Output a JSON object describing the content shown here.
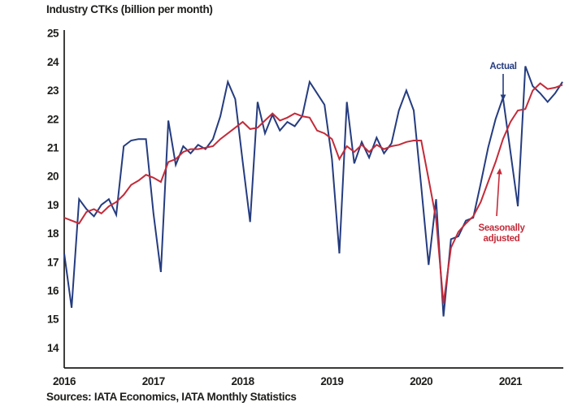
{
  "header": {
    "title": "Industry CTKs (billion per month)"
  },
  "footer": {
    "source": "Sources: IATA Economics, IATA Monthly Statistics"
  },
  "annotations": {
    "actual_label": "Actual",
    "sa_label_line1": "Seasonally",
    "sa_label_line2": "adjusted"
  },
  "colors": {
    "actual_line": "#253c7f",
    "seasonally_adjusted_line": "#c32b39",
    "axis": "#1d1d1b",
    "background": "#ffffff"
  },
  "chart_data": {
    "type": "line",
    "title": "Industry CTKs (billion per month)",
    "x_unit": "month",
    "x_range": [
      "2016-01",
      "2021-08"
    ],
    "x_tick_labels": [
      "2016",
      "2017",
      "2018",
      "2019",
      "2020",
      "2021"
    ],
    "months_per_x_tick": 12,
    "y_ticks": [
      14,
      15,
      16,
      17,
      18,
      19,
      20,
      21,
      22,
      23,
      24,
      25
    ],
    "ylim": [
      14,
      25
    ],
    "grid": false,
    "legend": "inline-annotations",
    "series": [
      {
        "name": "Actual",
        "color": "#253c7f",
        "values": [
          17.3,
          15.4,
          19.2,
          18.85,
          18.6,
          19.0,
          19.2,
          18.65,
          21.05,
          21.25,
          21.3,
          21.3,
          18.7,
          16.65,
          21.95,
          20.4,
          21.05,
          20.8,
          21.1,
          20.95,
          21.3,
          22.1,
          23.3,
          22.7,
          20.5,
          18.4,
          22.6,
          21.5,
          22.15,
          21.6,
          21.9,
          21.75,
          22.1,
          23.3,
          22.9,
          22.5,
          20.6,
          17.3,
          22.6,
          20.45,
          21.2,
          20.65,
          21.35,
          20.8,
          21.15,
          22.3,
          23.0,
          22.3,
          19.65,
          16.9,
          19.2,
          15.1,
          17.8,
          17.9,
          18.45,
          18.55,
          19.75,
          21.0,
          22.0,
          22.75,
          20.85,
          18.95,
          23.85,
          23.15,
          22.9,
          22.6,
          22.9,
          23.3
        ]
      },
      {
        "name": "Seasonally adjusted",
        "color": "#c32b39",
        "values": [
          18.55,
          18.45,
          18.35,
          18.75,
          18.85,
          18.7,
          18.95,
          19.1,
          19.35,
          19.7,
          19.85,
          20.05,
          19.95,
          19.8,
          20.5,
          20.6,
          20.85,
          20.95,
          20.95,
          21.0,
          21.05,
          21.3,
          21.5,
          21.7,
          21.9,
          21.65,
          21.7,
          21.95,
          22.2,
          21.95,
          22.05,
          22.2,
          22.1,
          22.05,
          21.6,
          21.5,
          21.3,
          20.6,
          21.05,
          20.85,
          21.1,
          20.85,
          21.1,
          20.95,
          21.05,
          21.1,
          21.2,
          21.25,
          21.25,
          19.9,
          18.5,
          15.55,
          17.5,
          18.05,
          18.35,
          18.6,
          19.1,
          19.8,
          20.5,
          21.3,
          21.9,
          22.3,
          22.35,
          23.0,
          23.25,
          23.05,
          23.1,
          23.2
        ]
      }
    ]
  }
}
